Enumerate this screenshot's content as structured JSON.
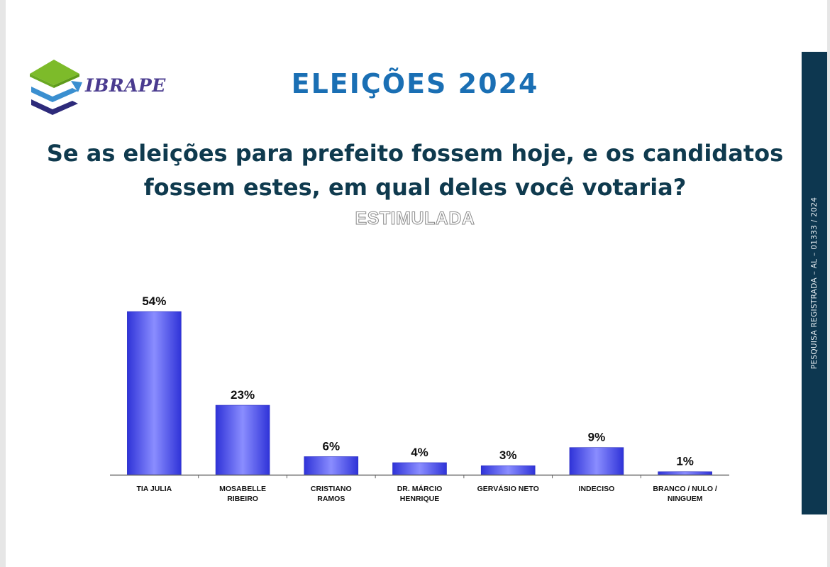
{
  "header": {
    "logo_text": "IBRAPE",
    "title": "ELEIÇÕES 2024"
  },
  "question": {
    "line1": "Se as eleições para prefeito fossem hoje,  e os candidatos",
    "line2": "fossem estes, em qual deles você votaria?"
  },
  "subtitle": "ESTIMULADA",
  "side_band": {
    "text": "PESQUISA REGISTRADA – AL – 01333 / 2024"
  },
  "colors": {
    "title": "#1a6fb4",
    "question": "#0f3a4e",
    "bar": "#3b3fe6",
    "bar_highlight": "#8a8dff",
    "side_band": "#0d3750",
    "logo_green": "#7dbb2a",
    "logo_blue": "#3a8fd0",
    "logo_navy": "#2d2a7a"
  },
  "chart_data": {
    "type": "bar",
    "categories": [
      [
        "TIA JULIA"
      ],
      [
        "MOSABELLE",
        "RIBEIRO"
      ],
      [
        "CRISTIANO",
        "RAMOS"
      ],
      [
        "DR. MÁRCIO",
        "HENRIQUE"
      ],
      [
        "GERVÁSIO NETO"
      ],
      [
        "INDECISO"
      ],
      [
        "BRANCO / NULO /",
        "NINGUEM"
      ]
    ],
    "values": [
      54,
      23,
      6,
      4,
      3,
      9,
      1
    ],
    "value_labels": [
      "54%",
      "23%",
      "6%",
      "4%",
      "3%",
      "9%",
      "1%"
    ],
    "unit": "%",
    "ylim": [
      0,
      54
    ],
    "grid": false,
    "legend": "none"
  }
}
